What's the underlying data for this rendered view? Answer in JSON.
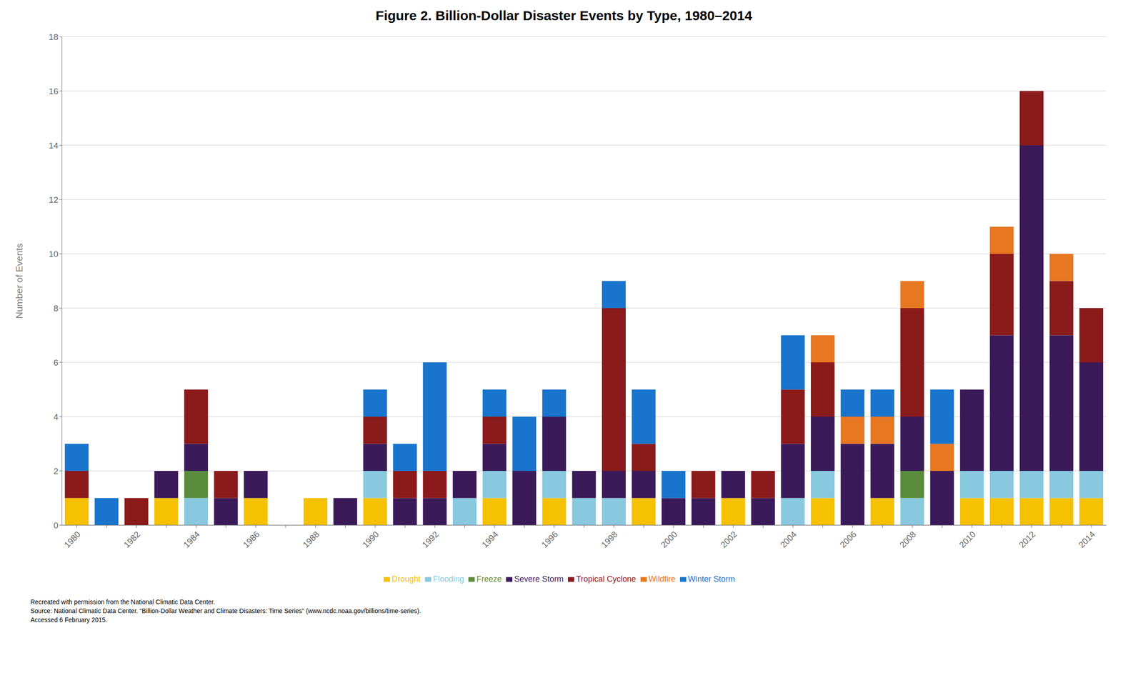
{
  "chart_data": {
    "type": "bar",
    "stacked": true,
    "title": "Figure 2. Billion-Dollar Disaster Events by Type, 1980–2014",
    "y_label": "Number of Events",
    "categories": [
      "1980",
      null,
      "1982",
      null,
      "1984",
      null,
      "1986",
      null,
      "1988",
      null,
      "1990",
      null,
      "1992",
      null,
      "1994",
      null,
      "1996",
      null,
      "1998",
      null,
      "2000",
      null,
      "2002",
      null,
      "2004",
      null,
      "2006",
      null,
      "2008",
      null,
      "2010",
      null,
      "2012",
      null,
      "2014"
    ],
    "series": [
      {
        "name": "Drought",
        "color": "#F5C100",
        "values": [
          1,
          0,
          0,
          1,
          0,
          0,
          1,
          0,
          1,
          0,
          1,
          0,
          0,
          0,
          1,
          0,
          1,
          0,
          0,
          1,
          0,
          0,
          1,
          0,
          0,
          1,
          0,
          1,
          0,
          0,
          1,
          1,
          1,
          1,
          1
        ]
      },
      {
        "name": "Flooding",
        "color": "#88C9E0",
        "values": [
          0,
          0,
          0,
          0,
          1,
          0,
          0,
          0,
          0,
          0,
          1,
          0,
          0,
          1,
          1,
          0,
          1,
          1,
          1,
          0,
          0,
          0,
          0,
          0,
          1,
          1,
          0,
          0,
          1,
          0,
          1,
          1,
          1,
          1,
          1
        ]
      },
      {
        "name": "Freeze",
        "color": "#5B8C3E",
        "values": [
          0,
          0,
          0,
          0,
          1,
          0,
          0,
          0,
          0,
          0,
          0,
          0,
          0,
          0,
          0,
          0,
          0,
          0,
          0,
          0,
          0,
          0,
          0,
          0,
          0,
          0,
          0,
          0,
          1,
          0,
          0,
          0,
          0,
          0,
          0
        ]
      },
      {
        "name": "Severe Storm",
        "color": "#3B1A5A",
        "values": [
          0,
          0,
          0,
          1,
          1,
          1,
          1,
          0,
          0,
          1,
          1,
          1,
          1,
          1,
          1,
          2,
          2,
          1,
          1,
          1,
          1,
          1,
          1,
          1,
          2,
          2,
          3,
          2,
          2,
          2,
          3,
          5,
          12,
          5,
          4
        ]
      },
      {
        "name": "Tropical Cyclone",
        "color": "#8B1A1A",
        "values": [
          1,
          0,
          1,
          0,
          2,
          1,
          0,
          0,
          0,
          0,
          1,
          1,
          1,
          0,
          1,
          0,
          0,
          0,
          6,
          1,
          0,
          1,
          0,
          1,
          2,
          2,
          0,
          0,
          4,
          0,
          0,
          3,
          2,
          2,
          2
        ]
      },
      {
        "name": "Wildfire",
        "color": "#E87722",
        "values": [
          0,
          0,
          0,
          0,
          0,
          0,
          0,
          0,
          0,
          0,
          0,
          0,
          0,
          0,
          0,
          0,
          0,
          0,
          0,
          0,
          0,
          0,
          0,
          0,
          0,
          1,
          1,
          1,
          1,
          1,
          0,
          1,
          0,
          1,
          0
        ]
      },
      {
        "name": "Winter Storm",
        "color": "#1874CD",
        "values": [
          1,
          1,
          0,
          0,
          0,
          0,
          0,
          0,
          0,
          0,
          1,
          1,
          4,
          0,
          1,
          2,
          1,
          0,
          1,
          2,
          1,
          0,
          0,
          0,
          2,
          0,
          1,
          1,
          0,
          2,
          0,
          0,
          0,
          0,
          0
        ]
      }
    ],
    "ylim": [
      0,
      18
    ],
    "yticks": [
      0,
      2,
      4,
      6,
      8,
      10,
      12,
      14,
      16,
      18
    ],
    "grid": true,
    "legend": "bottom",
    "annotations": [
      "Recreated with permission from the National Climatic Data Center.",
      "Source: National Climatic Data Center. “Billion-Dollar Weather and Climate Disasters: Time Series” (www.ncdc.noaa.gov/billions/time-series).",
      "Accessed 6 February 2015."
    ]
  }
}
